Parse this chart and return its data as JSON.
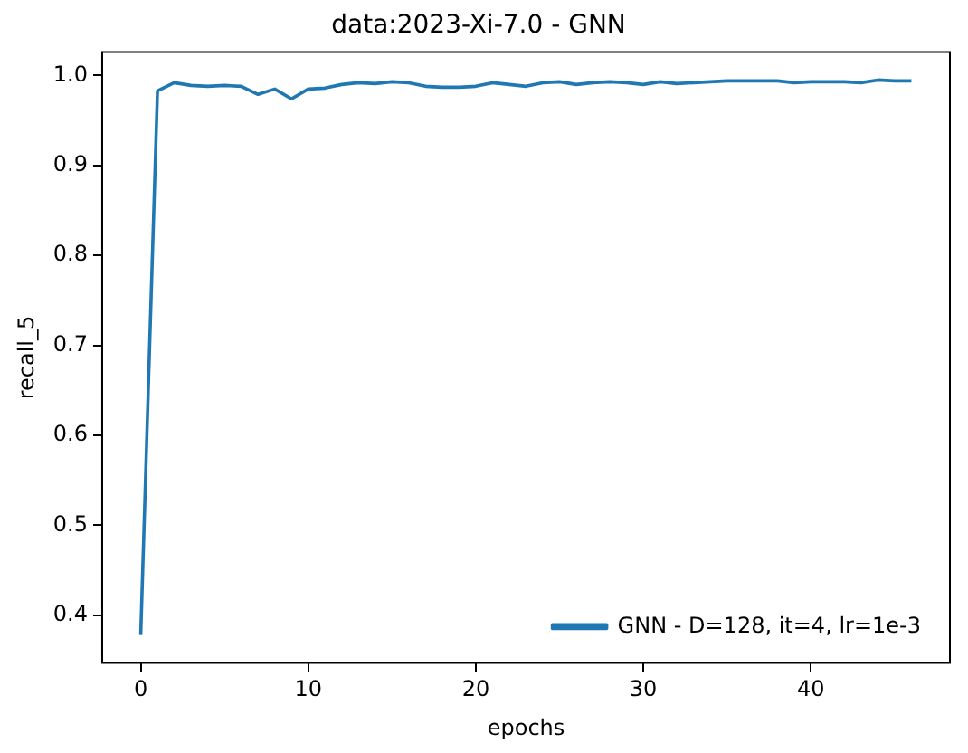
{
  "chart_data": {
    "type": "line",
    "title": "data:2023-Xi-7.0 - GNN",
    "xlabel": "epochs",
    "ylabel": "recall_5",
    "x": [
      0,
      1,
      2,
      3,
      4,
      5,
      6,
      7,
      8,
      9,
      10,
      11,
      12,
      13,
      14,
      15,
      16,
      17,
      18,
      19,
      20,
      21,
      22,
      23,
      24,
      25,
      26,
      27,
      28,
      29,
      30,
      31,
      32,
      33,
      34,
      35,
      36,
      37,
      38,
      39,
      40,
      41,
      42,
      43,
      44,
      45,
      46
    ],
    "series": [
      {
        "name": "GNN - D=128, it=4, lr=1e-3",
        "color": "#1f77b4",
        "values": [
          0.378,
          0.983,
          0.992,
          0.989,
          0.988,
          0.989,
          0.988,
          0.979,
          0.985,
          0.974,
          0.985,
          0.986,
          0.99,
          0.992,
          0.991,
          0.993,
          0.992,
          0.988,
          0.987,
          0.987,
          0.988,
          0.992,
          0.99,
          0.988,
          0.992,
          0.993,
          0.99,
          0.992,
          0.993,
          0.992,
          0.99,
          0.993,
          0.991,
          0.992,
          0.993,
          0.994,
          0.994,
          0.994,
          0.994,
          0.992,
          0.993,
          0.993,
          0.993,
          0.992,
          0.995,
          0.994,
          0.994
        ]
      }
    ],
    "xlim": [
      -2.3,
      48.3
    ],
    "xticks": [
      0,
      10,
      20,
      30,
      40
    ],
    "ylim": [
      0.347,
      1.026
    ],
    "yticks": [
      {
        "value": 0.4,
        "label": "0.4"
      },
      {
        "value": 0.5,
        "label": "0.5"
      },
      {
        "value": 0.6,
        "label": "0.6"
      },
      {
        "value": 0.7,
        "label": "0.7"
      },
      {
        "value": 0.8,
        "label": "0.8"
      },
      {
        "value": 0.9,
        "label": "0.9"
      },
      {
        "value": 1.0,
        "label": "1.0"
      }
    ],
    "legend": "bottom right",
    "marker": "none",
    "line_style": "solid",
    "grid": false
  }
}
